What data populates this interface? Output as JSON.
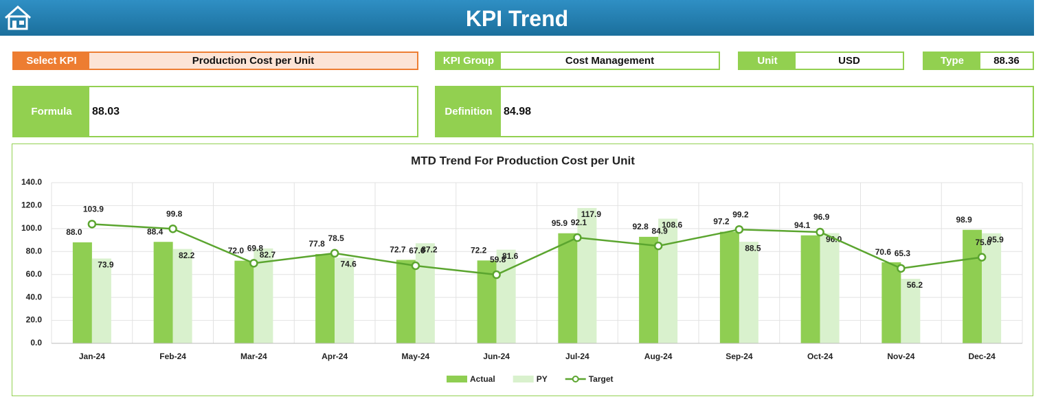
{
  "header": {
    "title": "KPI Trend"
  },
  "fields": {
    "select_kpi": {
      "label": "Select KPI",
      "value": "Production Cost per Unit"
    },
    "kpi_group": {
      "label": "KPI Group",
      "value": "Cost Management"
    },
    "unit": {
      "label": "Unit",
      "value": "USD"
    },
    "type": {
      "label": "Type",
      "value": "88.36"
    },
    "formula": {
      "label": "Formula",
      "value": "88.03"
    },
    "definition": {
      "label": "Definition",
      "value": "84.98"
    }
  },
  "chart_data": {
    "type": "bar-line",
    "title": "MTD Trend For Production Cost per Unit",
    "categories": [
      "Jan-24",
      "Feb-24",
      "Mar-24",
      "Apr-24",
      "May-24",
      "Jun-24",
      "Jul-24",
      "Aug-24",
      "Sep-24",
      "Oct-24",
      "Nov-24",
      "Dec-24"
    ],
    "series": [
      {
        "name": "Actual",
        "type": "bar",
        "color": "#8fce52",
        "values": [
          88.0,
          88.4,
          72.0,
          77.8,
          72.7,
          72.2,
          95.9,
          92.8,
          97.2,
          94.1,
          70.6,
          98.9
        ],
        "value_labels": [
          "88.0",
          "88.4",
          "72.0",
          "77.8",
          "72.7",
          "72.2",
          "95.9",
          "92.8",
          "97.2",
          "94.1",
          "70.6",
          "98.9"
        ]
      },
      {
        "name": "PY",
        "type": "bar",
        "color": "#d9f1cd",
        "values": [
          73.9,
          82.2,
          82.7,
          74.6,
          87.2,
          81.6,
          117.9,
          108.6,
          88.5,
          96.0,
          56.2,
          95.9
        ],
        "value_labels": [
          "73.9",
          "82.2",
          "82.7",
          "74.6",
          "87.2",
          "81.6",
          "117.9",
          "108.6",
          "88.5",
          "96.0",
          "56.2",
          "95.9"
        ]
      },
      {
        "name": "Target",
        "type": "line",
        "color": "#5ba52f",
        "values": [
          103.9,
          99.8,
          69.8,
          78.5,
          67.6,
          59.8,
          92.1,
          84.9,
          99.2,
          96.9,
          65.3,
          75.0
        ],
        "value_labels": [
          "103.9",
          "99.8",
          "69.8",
          "78.5",
          "67.6",
          "59.8",
          "92.1",
          "84.9",
          "99.2",
          "96.9",
          "65.3",
          "75.0"
        ]
      }
    ],
    "ylim": [
      0,
      140
    ],
    "yticks": [
      {
        "value": 0,
        "label": "0.0"
      },
      {
        "value": 20,
        "label": "20.0"
      },
      {
        "value": 40,
        "label": "40.0"
      },
      {
        "value": 60,
        "label": "60.0"
      },
      {
        "value": 80,
        "label": "80.0"
      },
      {
        "value": 100,
        "label": "100.0"
      },
      {
        "value": 120,
        "label": "120.0"
      },
      {
        "value": 140,
        "label": "140.0"
      }
    ],
    "grid": true,
    "legend": "bottom"
  }
}
